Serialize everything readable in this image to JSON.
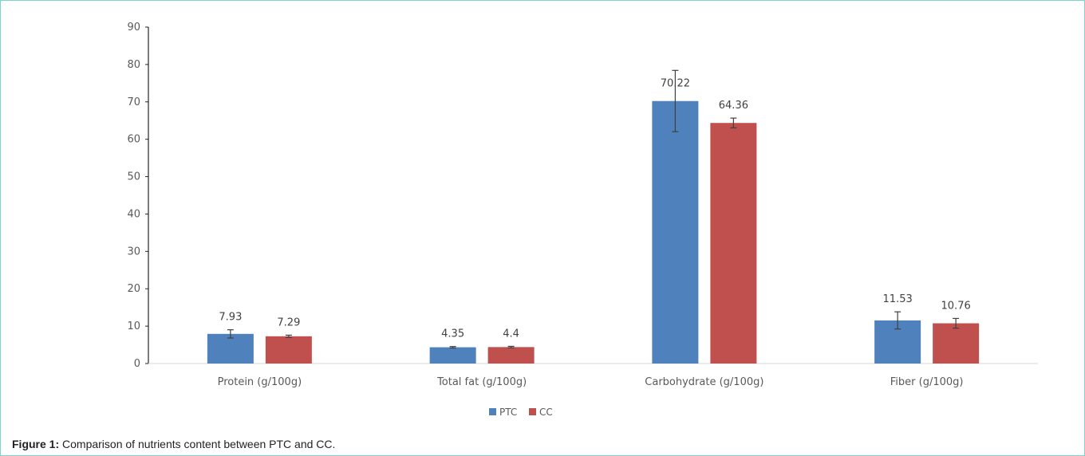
{
  "caption": {
    "label": "Figure 1:",
    "text": " Comparison of nutrients content between PTC and CC."
  },
  "chart_data": {
    "type": "bar",
    "title": "",
    "xlabel": "",
    "ylabel": "",
    "ylim": [
      0,
      90
    ],
    "yticks": [
      0,
      10,
      20,
      30,
      40,
      50,
      60,
      70,
      80,
      90
    ],
    "grid": false,
    "legend_position": "bottom-center",
    "categories": [
      "Protein (g/100g)",
      "Total fat (g/100g)",
      "Carbohydrate (g/100g)",
      "Fiber (g/100g)"
    ],
    "series": [
      {
        "name": "PTC",
        "color": "#4f81bd",
        "values": [
          7.93,
          4.35,
          70.22,
          11.53
        ],
        "labels": [
          "7.93",
          "4.35",
          "70.22",
          "11.53"
        ],
        "error": [
          1.1,
          0.2,
          8.2,
          2.3
        ]
      },
      {
        "name": "CC",
        "color": "#c0504d",
        "values": [
          7.29,
          4.4,
          64.36,
          10.76
        ],
        "labels": [
          "7.29",
          "4.4",
          "64.36",
          "10.76"
        ],
        "error": [
          0.3,
          0.2,
          1.3,
          1.3
        ]
      }
    ]
  }
}
